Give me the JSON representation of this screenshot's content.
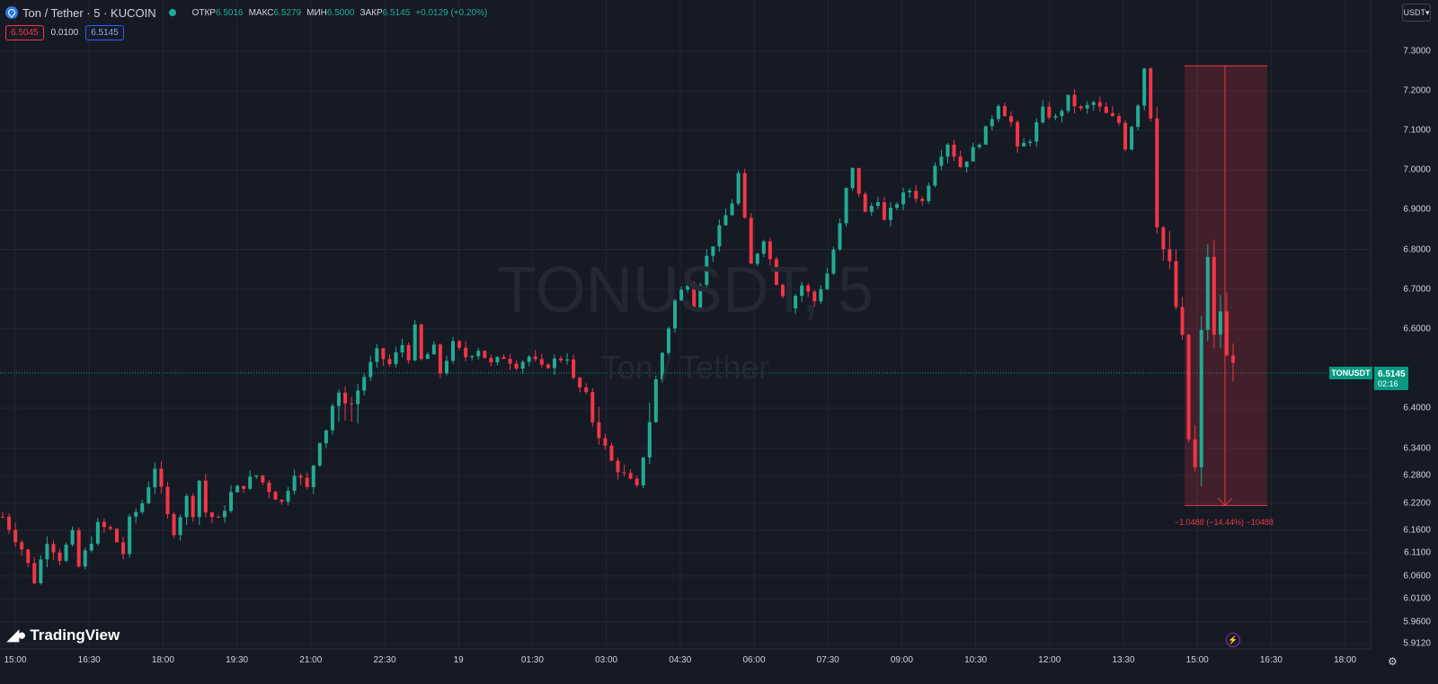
{
  "header": {
    "title": "Ton / Tether · 5 · KUCOIN",
    "open_label": "ОТКР",
    "open_value": "6.5016",
    "high_label": "МАКС",
    "high_value": "6.5279",
    "low_label": "МИН",
    "low_value": "6.5000",
    "close_label": "ЗАКР",
    "close_value": "6.5145",
    "change": "+0.0129 (+0.20%)",
    "sell_price": "6.5045",
    "spread": "0.0100",
    "buy_price": "6.5145"
  },
  "currency_button": "USDT",
  "watermark": {
    "symbol": "TONUSDT, 5",
    "name": "Ton / Tether"
  },
  "price_tag": {
    "symbol": "TONUSDT",
    "price": "6.5145",
    "countdown": "02:16"
  },
  "measure_label": "−1.0488 (−14.44%) −10488",
  "logo_text": "TradingView",
  "colors": {
    "up": "#22ab94",
    "down": "#f23645",
    "background": "#161a25",
    "grid": "#232632"
  },
  "chart_data": {
    "type": "candlestick",
    "series_name": "TONUSDT",
    "interval": "5m",
    "y_ticks": [
      "7.3000",
      "7.2000",
      "7.1000",
      "7.0000",
      "6.9000",
      "6.8000",
      "6.7000",
      "6.6000",
      "6.4000",
      "6.3400",
      "6.2800",
      "6.2200",
      "6.1600",
      "6.1100",
      "6.0600",
      "6.0100",
      "5.9600",
      "5.9120"
    ],
    "y_tick_values": [
      7.3,
      7.2,
      7.1,
      7.0,
      6.9,
      6.8,
      6.7,
      6.6,
      6.4,
      6.34,
      6.28,
      6.22,
      6.16,
      6.11,
      6.06,
      6.01,
      5.96,
      5.912
    ],
    "x_ticks": [
      "15:00",
      "16:30",
      "18:00",
      "19:30",
      "21:00",
      "22:30",
      "19",
      "01:30",
      "03:00",
      "04:30",
      "06:00",
      "07:30",
      "09:00",
      "10:30",
      "12:00",
      "13:30",
      "15:00",
      "16:30",
      "18:00"
    ],
    "current_price": 6.5145,
    "measurement": {
      "from": 7.2633,
      "to": 6.2145,
      "change": -1.0488,
      "percent": -14.44,
      "direction": "down"
    },
    "close_path": [
      [
        0,
        6.19
      ],
      [
        3,
        6.12
      ],
      [
        5,
        6.05
      ],
      [
        7,
        6.14
      ],
      [
        9,
        6.1
      ],
      [
        11,
        6.15
      ],
      [
        12,
        6.08
      ],
      [
        15,
        6.17
      ],
      [
        17,
        6.16
      ],
      [
        19,
        6.11
      ],
      [
        20,
        6.18
      ],
      [
        22,
        6.22
      ],
      [
        24,
        6.3
      ],
      [
        26,
        6.19
      ],
      [
        27,
        6.16
      ],
      [
        29,
        6.23
      ],
      [
        30,
        6.2
      ],
      [
        31,
        6.27
      ],
      [
        32,
        6.2
      ],
      [
        34,
        6.18
      ],
      [
        36,
        6.24
      ],
      [
        38,
        6.26
      ],
      [
        40,
        6.28
      ],
      [
        42,
        6.25
      ],
      [
        44,
        6.22
      ],
      [
        46,
        6.29
      ],
      [
        48,
        6.25
      ],
      [
        50,
        6.36
      ],
      [
        53,
        6.43
      ],
      [
        55,
        6.41
      ],
      [
        57,
        6.48
      ],
      [
        59,
        6.54
      ],
      [
        61,
        6.51
      ],
      [
        63,
        6.56
      ],
      [
        64,
        6.53
      ],
      [
        65,
        6.6
      ],
      [
        66,
        6.52
      ],
      [
        68,
        6.55
      ],
      [
        69,
        6.49
      ],
      [
        71,
        6.56
      ],
      [
        73,
        6.53
      ],
      [
        75,
        6.55
      ],
      [
        77,
        6.51
      ],
      [
        79,
        6.53
      ],
      [
        81,
        6.51
      ],
      [
        83,
        6.53
      ],
      [
        85,
        6.5
      ],
      [
        87,
        6.52
      ],
      [
        89,
        6.53
      ],
      [
        90,
        6.47
      ],
      [
        92,
        6.43
      ],
      [
        94,
        6.37
      ],
      [
        96,
        6.31
      ],
      [
        98,
        6.28
      ],
      [
        100,
        6.25
      ],
      [
        102,
        6.4
      ],
      [
        104,
        6.54
      ],
      [
        106,
        6.67
      ],
      [
        108,
        6.72
      ],
      [
        109,
        6.66
      ],
      [
        111,
        6.78
      ],
      [
        113,
        6.85
      ],
      [
        115,
        6.92
      ],
      [
        116,
        6.99
      ],
      [
        117,
        6.87
      ],
      [
        118,
        6.76
      ],
      [
        120,
        6.83
      ],
      [
        122,
        6.72
      ],
      [
        124,
        6.66
      ],
      [
        126,
        6.71
      ],
      [
        128,
        6.67
      ],
      [
        130,
        6.74
      ],
      [
        132,
        6.86
      ],
      [
        133,
        6.95
      ],
      [
        134,
        7.0
      ],
      [
        136,
        6.89
      ],
      [
        138,
        6.93
      ],
      [
        139,
        6.87
      ],
      [
        141,
        6.92
      ],
      [
        143,
        6.95
      ],
      [
        145,
        6.92
      ],
      [
        147,
        7.02
      ],
      [
        149,
        7.07
      ],
      [
        151,
        7.01
      ],
      [
        153,
        7.05
      ],
      [
        155,
        7.1
      ],
      [
        157,
        7.17
      ],
      [
        159,
        7.12
      ],
      [
        160,
        7.05
      ],
      [
        162,
        7.08
      ],
      [
        164,
        7.15
      ],
      [
        166,
        7.13
      ],
      [
        168,
        7.18
      ],
      [
        170,
        7.15
      ],
      [
        172,
        7.17
      ],
      [
        174,
        7.14
      ],
      [
        176,
        7.12
      ],
      [
        177,
        7.06
      ],
      [
        179,
        7.17
      ],
      [
        180,
        7.26
      ],
      [
        181,
        7.15
      ],
      [
        182,
        6.88
      ],
      [
        183,
        6.8
      ],
      [
        184,
        6.75
      ],
      [
        186,
        6.56
      ],
      [
        187,
        6.36
      ],
      [
        188,
        6.29
      ],
      [
        189,
        6.58
      ],
      [
        190,
        6.79
      ],
      [
        191,
        6.57
      ],
      [
        192,
        6.65
      ],
      [
        193,
        6.52
      ],
      [
        194,
        6.51
      ]
    ]
  }
}
